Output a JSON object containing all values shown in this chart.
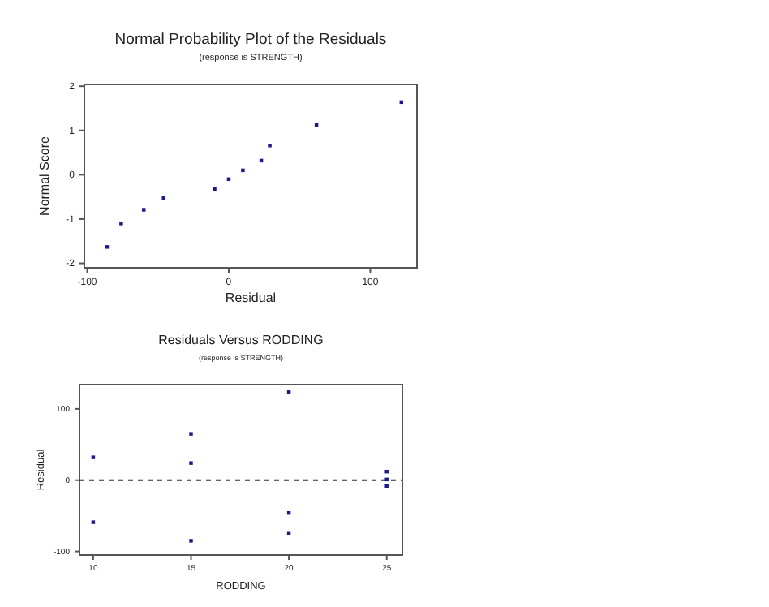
{
  "chart_data": [
    {
      "type": "scatter",
      "title": "Normal Probability Plot of the Residuals",
      "subtitle": "(response is STRENGTH)",
      "xlabel": "Residual",
      "ylabel": "Normal Score",
      "x": [
        -86,
        -76,
        -60,
        -46,
        -10,
        0,
        10,
        23,
        29,
        62,
        122
      ],
      "series": [
        {
          "color": "#1a1a8c",
          "values": [
            -1.63,
            -1.1,
            -0.79,
            -0.53,
            -0.32,
            -0.1,
            0.1,
            0.32,
            0.66,
            1.12,
            1.64
          ]
        }
      ],
      "xlim": [
        -102,
        133
      ],
      "xticks": [
        -100,
        0,
        100
      ],
      "ylim": [
        -2.1,
        2.04
      ],
      "yticks": [
        -2,
        -1,
        0,
        1,
        2
      ],
      "marker": "square",
      "grid": false
    },
    {
      "type": "scatter",
      "title": "Residuals Versus RODDING",
      "subtitle": "(response is STRENGTH)",
      "xlabel": "RODDING",
      "ylabel": "Residual",
      "x": [
        10,
        10,
        15,
        15,
        15,
        20,
        20,
        20,
        25,
        25,
        25
      ],
      "series": [
        {
          "color": "#1a1a8c",
          "values": [
            32,
            -59,
            65,
            24,
            -85,
            124,
            -46,
            -74,
            12,
            1,
            -8
          ]
        }
      ],
      "xlim": [
        9.3,
        25.8
      ],
      "xticks": [
        10,
        15,
        20,
        25
      ],
      "ylim": [
        -105,
        134
      ],
      "yticks": [
        -100,
        0,
        100
      ],
      "ref_lines": [
        {
          "axis": "y",
          "value": 0,
          "color": "#333333",
          "line_style": "dashed"
        }
      ],
      "marker": "square",
      "grid": false
    }
  ]
}
